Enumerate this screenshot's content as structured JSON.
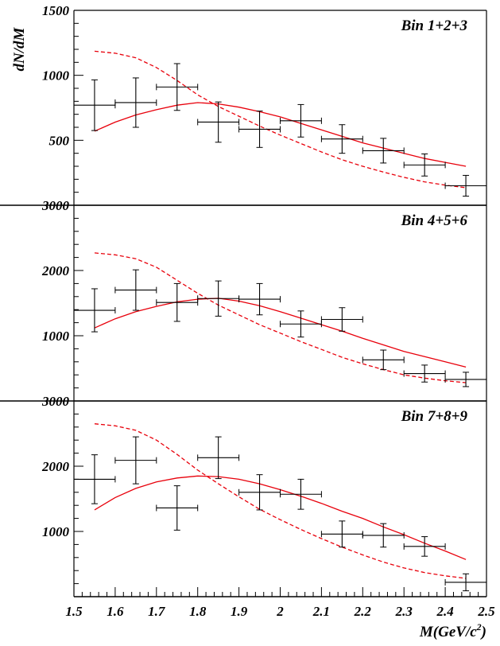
{
  "chart_data": {
    "type": "line",
    "xlabel": "M(GeV/c²)",
    "ylabel": "dN/dM",
    "xlim": [
      1.5,
      2.5
    ],
    "x_ticks": [
      "1.5",
      "1.6",
      "1.7",
      "1.8",
      "1.9",
      "2",
      "2.1",
      "2.2",
      "2.3",
      "2.4",
      "2.5"
    ],
    "line_colors": {
      "data": "#000000",
      "fit_solid": "#e8000b",
      "fit_dashed": "#e8000b"
    },
    "panels": [
      {
        "label": "Bin 1+2+3",
        "ylim": [
          0,
          1500
        ],
        "y_ticks": [
          {
            "value": 500,
            "label": "500"
          },
          {
            "value": 1000,
            "label": "1000"
          },
          {
            "value": 1500,
            "label": "1500"
          }
        ],
        "points": [
          {
            "x": 1.55,
            "y": 770,
            "err": 195
          },
          {
            "x": 1.65,
            "y": 790,
            "err": 190
          },
          {
            "x": 1.75,
            "y": 910,
            "err": 180
          },
          {
            "x": 1.85,
            "y": 640,
            "err": 155
          },
          {
            "x": 1.95,
            "y": 585,
            "err": 140
          },
          {
            "x": 2.05,
            "y": 650,
            "err": 125
          },
          {
            "x": 2.15,
            "y": 510,
            "err": 110
          },
          {
            "x": 2.25,
            "y": 420,
            "err": 95
          },
          {
            "x": 2.35,
            "y": 310,
            "err": 85
          },
          {
            "x": 2.45,
            "y": 150,
            "err": 80
          }
        ],
        "solid_fit": [
          [
            1.55,
            570
          ],
          [
            1.6,
            640
          ],
          [
            1.65,
            695
          ],
          [
            1.7,
            735
          ],
          [
            1.75,
            770
          ],
          [
            1.8,
            790
          ],
          [
            1.85,
            780
          ],
          [
            1.9,
            755
          ],
          [
            1.95,
            720
          ],
          [
            2.0,
            680
          ],
          [
            2.05,
            630
          ],
          [
            2.1,
            580
          ],
          [
            2.15,
            530
          ],
          [
            2.2,
            480
          ],
          [
            2.25,
            440
          ],
          [
            2.3,
            400
          ],
          [
            2.35,
            360
          ],
          [
            2.4,
            330
          ],
          [
            2.45,
            300
          ]
        ],
        "dashed_fit": [
          [
            1.55,
            1185
          ],
          [
            1.6,
            1170
          ],
          [
            1.65,
            1135
          ],
          [
            1.7,
            1060
          ],
          [
            1.75,
            960
          ],
          [
            1.8,
            850
          ],
          [
            1.85,
            760
          ],
          [
            1.9,
            685
          ],
          [
            1.95,
            610
          ],
          [
            2.0,
            540
          ],
          [
            2.05,
            475
          ],
          [
            2.1,
            410
          ],
          [
            2.15,
            350
          ],
          [
            2.2,
            300
          ],
          [
            2.25,
            255
          ],
          [
            2.3,
            215
          ],
          [
            2.35,
            180
          ],
          [
            2.4,
            155
          ],
          [
            2.45,
            135
          ]
        ]
      },
      {
        "label": "Bin 4+5+6",
        "ylim": [
          0,
          3000
        ],
        "y_ticks": [
          {
            "value": 1000,
            "label": "1000"
          },
          {
            "value": 2000,
            "label": "2000"
          },
          {
            "value": 3000,
            "label": "3000"
          }
        ],
        "points": [
          {
            "x": 1.55,
            "y": 1390,
            "err": 330
          },
          {
            "x": 1.65,
            "y": 1700,
            "err": 310
          },
          {
            "x": 1.75,
            "y": 1510,
            "err": 290
          },
          {
            "x": 1.85,
            "y": 1570,
            "err": 270
          },
          {
            "x": 1.95,
            "y": 1560,
            "err": 240
          },
          {
            "x": 2.05,
            "y": 1180,
            "err": 200
          },
          {
            "x": 2.15,
            "y": 1250,
            "err": 180
          },
          {
            "x": 2.25,
            "y": 630,
            "err": 150
          },
          {
            "x": 2.35,
            "y": 420,
            "err": 130
          },
          {
            "x": 2.45,
            "y": 330,
            "err": 110
          }
        ],
        "solid_fit": [
          [
            1.55,
            1120
          ],
          [
            1.6,
            1260
          ],
          [
            1.65,
            1370
          ],
          [
            1.7,
            1450
          ],
          [
            1.75,
            1520
          ],
          [
            1.8,
            1560
          ],
          [
            1.85,
            1575
          ],
          [
            1.9,
            1530
          ],
          [
            1.95,
            1460
          ],
          [
            2.0,
            1370
          ],
          [
            2.05,
            1270
          ],
          [
            2.1,
            1170
          ],
          [
            2.15,
            1070
          ],
          [
            2.2,
            960
          ],
          [
            2.25,
            860
          ],
          [
            2.3,
            760
          ],
          [
            2.35,
            680
          ],
          [
            2.4,
            600
          ],
          [
            2.45,
            520
          ]
        ],
        "dashed_fit": [
          [
            1.55,
            2270
          ],
          [
            1.6,
            2240
          ],
          [
            1.65,
            2180
          ],
          [
            1.7,
            2050
          ],
          [
            1.75,
            1850
          ],
          [
            1.8,
            1650
          ],
          [
            1.85,
            1470
          ],
          [
            1.9,
            1320
          ],
          [
            1.95,
            1170
          ],
          [
            2.0,
            1040
          ],
          [
            2.05,
            910
          ],
          [
            2.1,
            790
          ],
          [
            2.15,
            670
          ],
          [
            2.2,
            570
          ],
          [
            2.25,
            480
          ],
          [
            2.3,
            400
          ],
          [
            2.35,
            350
          ],
          [
            2.4,
            310
          ],
          [
            2.45,
            280
          ]
        ]
      },
      {
        "label": "Bin 7+8+9",
        "ylim": [
          0,
          3000
        ],
        "y_ticks": [
          {
            "value": 1000,
            "label": "1000"
          },
          {
            "value": 2000,
            "label": "2000"
          },
          {
            "value": 3000,
            "label": "3000"
          }
        ],
        "points": [
          {
            "x": 1.55,
            "y": 1800,
            "err": 375
          },
          {
            "x": 1.65,
            "y": 2090,
            "err": 360
          },
          {
            "x": 1.75,
            "y": 1360,
            "err": 340
          },
          {
            "x": 1.85,
            "y": 2130,
            "err": 320
          },
          {
            "x": 1.95,
            "y": 1600,
            "err": 270
          },
          {
            "x": 2.05,
            "y": 1570,
            "err": 230
          },
          {
            "x": 2.15,
            "y": 960,
            "err": 200
          },
          {
            "x": 2.25,
            "y": 940,
            "err": 180
          },
          {
            "x": 2.35,
            "y": 770,
            "err": 150
          },
          {
            "x": 2.45,
            "y": 220,
            "err": 130
          }
        ],
        "solid_fit": [
          [
            1.55,
            1330
          ],
          [
            1.6,
            1520
          ],
          [
            1.65,
            1660
          ],
          [
            1.7,
            1760
          ],
          [
            1.75,
            1820
          ],
          [
            1.8,
            1850
          ],
          [
            1.85,
            1840
          ],
          [
            1.9,
            1800
          ],
          [
            1.95,
            1730
          ],
          [
            2.0,
            1640
          ],
          [
            2.05,
            1540
          ],
          [
            2.1,
            1430
          ],
          [
            2.15,
            1310
          ],
          [
            2.2,
            1200
          ],
          [
            2.25,
            1070
          ],
          [
            2.3,
            950
          ],
          [
            2.35,
            820
          ],
          [
            2.4,
            700
          ],
          [
            2.45,
            570
          ]
        ],
        "dashed_fit": [
          [
            1.55,
            2650
          ],
          [
            1.6,
            2620
          ],
          [
            1.65,
            2550
          ],
          [
            1.7,
            2400
          ],
          [
            1.75,
            2180
          ],
          [
            1.8,
            1940
          ],
          [
            1.85,
            1730
          ],
          [
            1.9,
            1530
          ],
          [
            1.95,
            1340
          ],
          [
            2.0,
            1180
          ],
          [
            2.05,
            1030
          ],
          [
            2.1,
            890
          ],
          [
            2.15,
            760
          ],
          [
            2.2,
            640
          ],
          [
            2.25,
            530
          ],
          [
            2.3,
            440
          ],
          [
            2.35,
            370
          ],
          [
            2.4,
            320
          ],
          [
            2.45,
            280
          ]
        ]
      }
    ]
  }
}
